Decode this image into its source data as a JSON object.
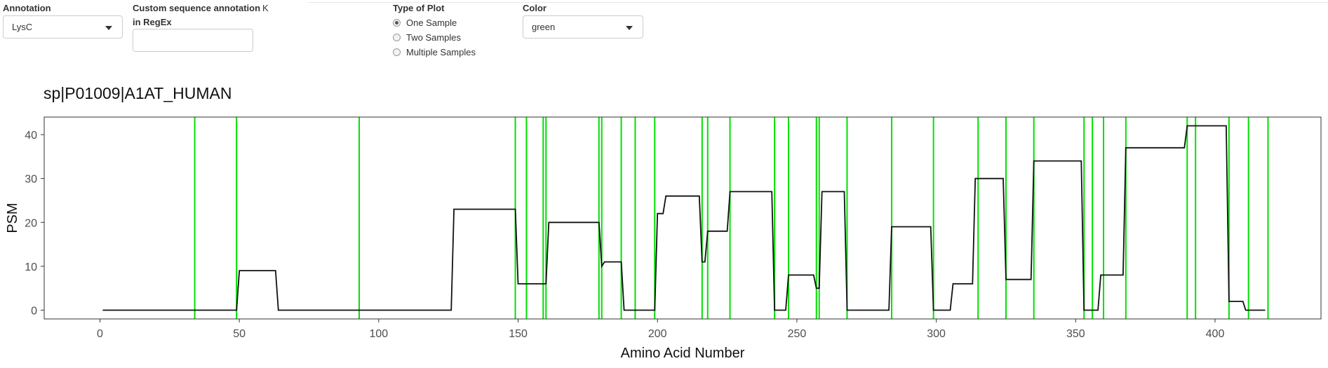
{
  "controls": {
    "annotation": {
      "label": "Annotation",
      "value": "LysC"
    },
    "custom_regex": {
      "label_line1": "Custom sequence annotation",
      "label_line2": "in RegEx",
      "value": "",
      "side_text": "K"
    },
    "plot_type": {
      "label": "Type of Plot",
      "options": [
        {
          "label": "One Sample",
          "checked": true
        },
        {
          "label": "Two Samples",
          "checked": false
        },
        {
          "label": "Multiple Samples",
          "checked": false
        }
      ]
    },
    "color": {
      "label": "Color",
      "value": "green"
    }
  },
  "chart_data": {
    "type": "line",
    "title": "sp|P01009|A1AT_HUMAN",
    "xlabel": "Amino Acid Number",
    "ylabel": "PSM",
    "xlim": [
      -20,
      438
    ],
    "ylim": [
      -2,
      44
    ],
    "xticks": [
      0,
      50,
      100,
      150,
      200,
      250,
      300,
      350,
      400
    ],
    "yticks": [
      0,
      10,
      20,
      30,
      40
    ],
    "grid": false,
    "legend": "none",
    "line_color": "#111111",
    "annotation_color": "#00e000",
    "annotation_positions": [
      34,
      49,
      93,
      149,
      153,
      159,
      160,
      179,
      180,
      187,
      192,
      199,
      216,
      218,
      226,
      242,
      247,
      257,
      258,
      268,
      284,
      299,
      315,
      325,
      335,
      353,
      356,
      360,
      368,
      390,
      393,
      405,
      412,
      419
    ],
    "series": [
      {
        "x": [
          1,
          49,
          50,
          63,
          64,
          126,
          127,
          149,
          150,
          159,
          160,
          161,
          179,
          180,
          181,
          187,
          188,
          199,
          200,
          202,
          203,
          215,
          216,
          217,
          218,
          225,
          226,
          241,
          242,
          246,
          247,
          256,
          257,
          258,
          259,
          267,
          268,
          283,
          284,
          298,
          299,
          305,
          306,
          313,
          314,
          324,
          325,
          334,
          335,
          352,
          353,
          358,
          359,
          367,
          368,
          389,
          390,
          404,
          405,
          410,
          411,
          418
        ],
        "y": [
          0,
          0,
          9,
          9,
          0,
          0,
          23,
          23,
          6,
          6,
          6,
          20,
          20,
          10,
          11,
          11,
          0,
          0,
          22,
          22,
          26,
          26,
          11,
          11,
          18,
          18,
          27,
          27,
          0,
          0,
          8,
          8,
          5,
          5,
          27,
          27,
          0,
          0,
          19,
          19,
          0,
          0,
          6,
          6,
          30,
          30,
          7,
          7,
          34,
          34,
          0,
          0,
          8,
          8,
          37,
          37,
          42,
          42,
          2,
          2,
          0,
          0
        ]
      }
    ]
  }
}
